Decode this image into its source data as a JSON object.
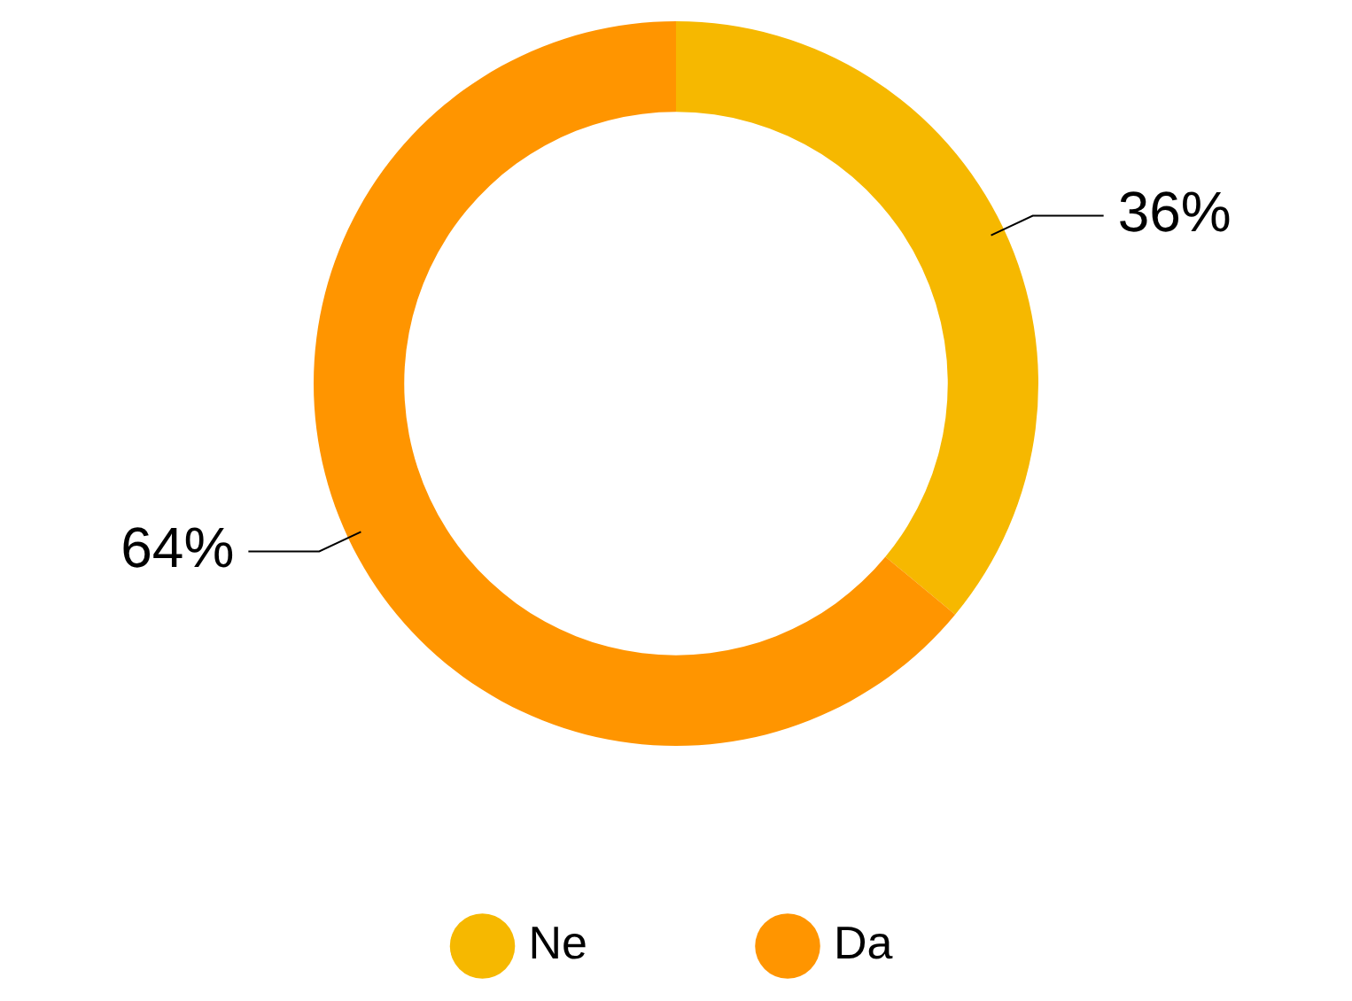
{
  "chart_data": {
    "type": "donut",
    "categories": [
      "Ne",
      "Da"
    ],
    "values": [
      36,
      64
    ],
    "colors": [
      "#f6b800",
      "#ff9500"
    ],
    "value_labels": [
      "36%",
      "64%"
    ],
    "legend": "bottom"
  }
}
